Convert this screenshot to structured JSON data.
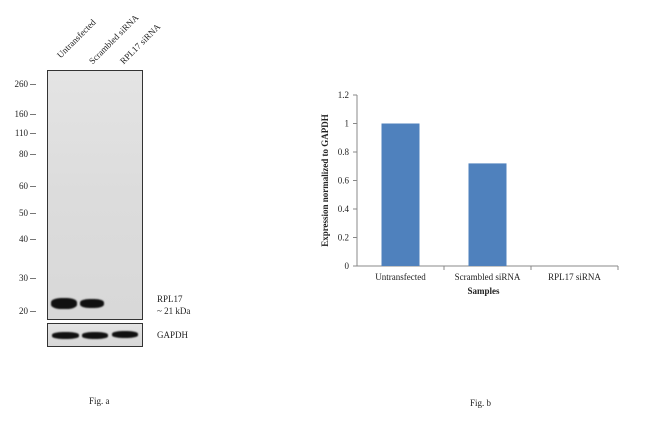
{
  "fig_a": {
    "lanes": [
      "Untransfected",
      "Scrambled siRNA",
      "RPL17 siRNA"
    ],
    "markers": [
      "260",
      "160",
      "110",
      "80",
      "60",
      "50",
      "40",
      "30",
      "20"
    ],
    "band_label_line1": "RPL17",
    "band_label_line2": "~ 21 kDa",
    "loading_control_label": "GAPDH",
    "caption": "Fig. a"
  },
  "fig_b": {
    "caption": "Fig. b"
  },
  "chart_data": {
    "type": "bar",
    "categories": [
      "Untransfected",
      "Scrambled siRNA",
      "RPL17 siRNA"
    ],
    "values": [
      1.0,
      0.72,
      0.0
    ],
    "title": "",
    "xlabel": "Samples",
    "ylabel": "Expression normalized to GAPDH",
    "ylim": [
      0,
      1.2
    ],
    "yticks": [
      "0",
      "0.2",
      "0.4",
      "0.6",
      "0.8",
      "1",
      "1.2"
    ],
    "bar_color": "#4f81bd",
    "grid": false
  }
}
